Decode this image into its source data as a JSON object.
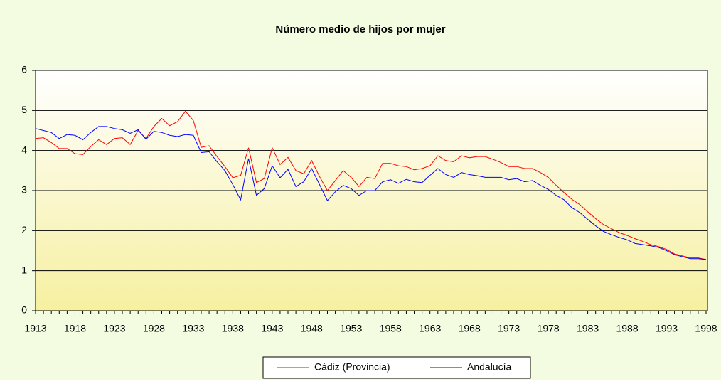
{
  "chart_data": {
    "type": "line",
    "title": "Número medio de hijos por mujer",
    "x": [
      1913,
      1914,
      1915,
      1916,
      1917,
      1918,
      1919,
      1920,
      1921,
      1922,
      1923,
      1924,
      1925,
      1926,
      1927,
      1928,
      1929,
      1930,
      1931,
      1932,
      1933,
      1934,
      1935,
      1936,
      1937,
      1938,
      1939,
      1940,
      1941,
      1942,
      1943,
      1944,
      1945,
      1946,
      1947,
      1948,
      1949,
      1950,
      1951,
      1952,
      1953,
      1954,
      1955,
      1956,
      1957,
      1958,
      1959,
      1960,
      1961,
      1962,
      1963,
      1964,
      1965,
      1966,
      1967,
      1968,
      1969,
      1970,
      1971,
      1972,
      1973,
      1974,
      1975,
      1976,
      1977,
      1978,
      1979,
      1980,
      1981,
      1982,
      1983,
      1984,
      1985,
      1986,
      1987,
      1988,
      1989,
      1990,
      1991,
      1992,
      1993,
      1994,
      1995,
      1996,
      1997,
      1998
    ],
    "series": [
      {
        "name": "Cádiz (Provincia)",
        "color": "#ff0000",
        "values": [
          4.3,
          4.32,
          4.2,
          4.05,
          4.05,
          3.92,
          3.9,
          4.1,
          4.27,
          4.15,
          4.3,
          4.32,
          4.15,
          4.5,
          4.3,
          4.6,
          4.8,
          4.62,
          4.72,
          4.98,
          4.75,
          4.08,
          4.12,
          3.85,
          3.6,
          3.32,
          3.38,
          4.07,
          3.2,
          3.3,
          4.07,
          3.65,
          3.83,
          3.5,
          3.42,
          3.75,
          3.35,
          3.0,
          3.25,
          3.5,
          3.33,
          3.1,
          3.33,
          3.3,
          3.68,
          3.68,
          3.62,
          3.6,
          3.52,
          3.55,
          3.62,
          3.87,
          3.75,
          3.72,
          3.87,
          3.82,
          3.85,
          3.85,
          3.78,
          3.7,
          3.6,
          3.6,
          3.55,
          3.55,
          3.45,
          3.33,
          3.13,
          2.95,
          2.78,
          2.65,
          2.47,
          2.3,
          2.15,
          2.05,
          1.95,
          1.88,
          1.8,
          1.73,
          1.65,
          1.6,
          1.53,
          1.42,
          1.37,
          1.32,
          1.32,
          1.28
        ]
      },
      {
        "name": "Andalucía",
        "color": "#0000ff",
        "values": [
          4.55,
          4.5,
          4.45,
          4.3,
          4.4,
          4.38,
          4.27,
          4.45,
          4.6,
          4.6,
          4.55,
          4.52,
          4.43,
          4.52,
          4.28,
          4.48,
          4.45,
          4.38,
          4.35,
          4.4,
          4.38,
          3.95,
          3.97,
          3.72,
          3.5,
          3.15,
          2.77,
          3.8,
          2.88,
          3.05,
          3.62,
          3.32,
          3.53,
          3.1,
          3.22,
          3.55,
          3.15,
          2.75,
          2.97,
          3.13,
          3.05,
          2.88,
          3.0,
          3.0,
          3.22,
          3.27,
          3.18,
          3.28,
          3.22,
          3.2,
          3.38,
          3.55,
          3.4,
          3.33,
          3.45,
          3.4,
          3.37,
          3.33,
          3.33,
          3.33,
          3.27,
          3.3,
          3.22,
          3.25,
          3.13,
          3.03,
          2.88,
          2.77,
          2.57,
          2.45,
          2.28,
          2.12,
          1.98,
          1.9,
          1.83,
          1.77,
          1.68,
          1.65,
          1.62,
          1.58,
          1.5,
          1.4,
          1.35,
          1.3,
          1.3,
          1.28
        ]
      }
    ],
    "xlim": [
      1913,
      1998
    ],
    "xticks": [
      1913,
      1918,
      1923,
      1928,
      1933,
      1938,
      1943,
      1948,
      1953,
      1958,
      1963,
      1968,
      1973,
      1978,
      1983,
      1988,
      1993,
      1998
    ],
    "ylim": [
      0,
      6
    ],
    "yticks": [
      0,
      1,
      2,
      3,
      4,
      5,
      6
    ],
    "grid": true,
    "legend": "bottom"
  }
}
